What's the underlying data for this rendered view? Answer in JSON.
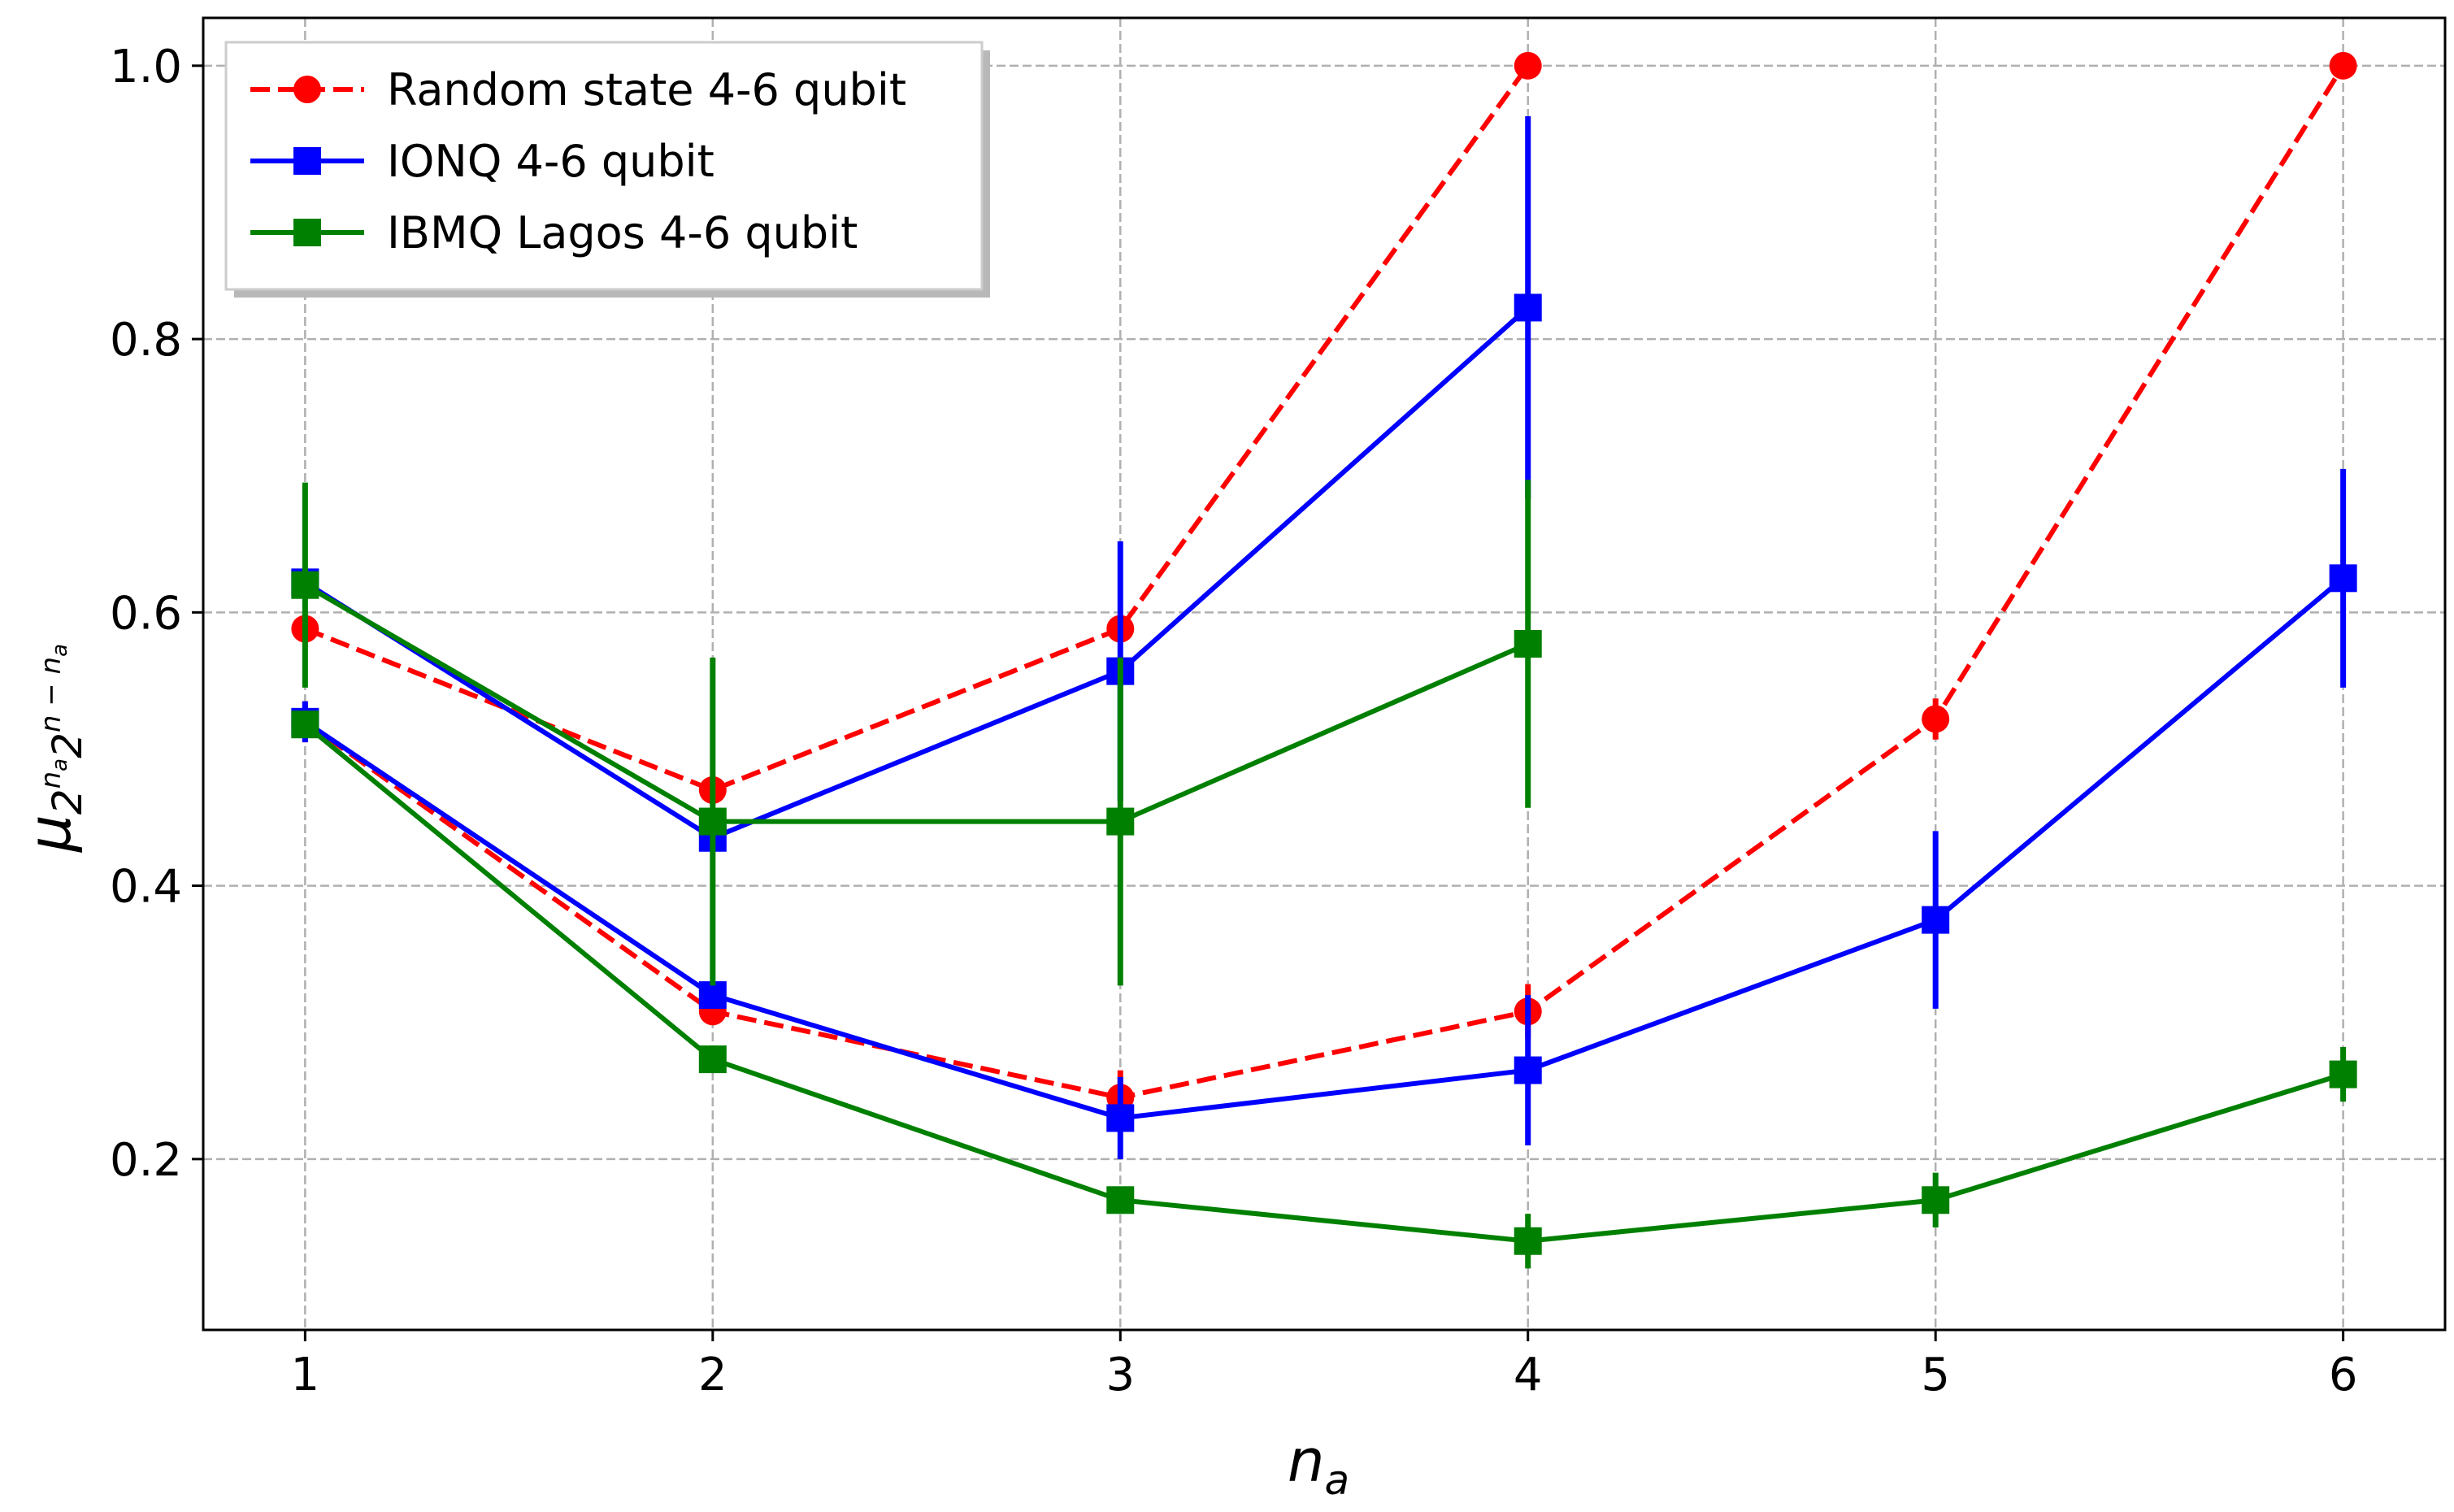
{
  "chart_data": {
    "type": "line",
    "xlabel_base": "n",
    "xlabel_sub": "a",
    "ylabel": {
      "mu": "μ",
      "sub_base1": "2",
      "sub_exp1": "n",
      "sub_exp1_sub": "a",
      "sub_base2": "2",
      "sub_exp2": "n − n",
      "sub_exp2_sub": "a"
    },
    "xlim": [
      0.75,
      6.25
    ],
    "ylim": [
      0.075,
      1.035
    ],
    "xticks": [
      1,
      2,
      3,
      4,
      5,
      6
    ],
    "yticks": [
      0.2,
      0.4,
      0.6,
      0.8,
      1.0
    ],
    "xtick_labels": [
      "1",
      "2",
      "3",
      "4",
      "5",
      "6"
    ],
    "ytick_labels": [
      "0.2",
      "0.4",
      "0.6",
      "0.8",
      "1.0"
    ],
    "grid": true,
    "legend_position": "top-left",
    "series": [
      {
        "name": "Random state 4-6 qubit",
        "color": "#ff0000",
        "dashed": true,
        "marker": "circle",
        "lines": [
          {
            "x": [
              1,
              2,
              3,
              4
            ],
            "y": [
              0.588,
              0.47,
              0.588,
              1.0
            ],
            "err": [
              0,
              0,
              0,
              0
            ]
          },
          {
            "x": [
              1,
              2,
              3,
              4,
              5,
              6
            ],
            "y": [
              0.52,
              0.308,
              0.245,
              0.308,
              0.522,
              1.0
            ],
            "err": [
              0.015,
              0.01,
              0.02,
              0.02,
              0.015,
              0
            ]
          }
        ]
      },
      {
        "name": "IONQ 4-6 qubit",
        "color": "#0000ff",
        "dashed": false,
        "marker": "square",
        "lines": [
          {
            "x": [
              1,
              2,
              3,
              4
            ],
            "y": [
              0.622,
              0.435,
              0.557,
              0.823
            ],
            "err": [
              0.01,
              0.01,
              0.095,
              0.14
            ]
          },
          {
            "x": [
              1,
              2,
              3,
              4,
              5,
              6
            ],
            "y": [
              0.52,
              0.32,
              0.23,
              0.265,
              0.375,
              0.625
            ],
            "err": [
              0.015,
              0.01,
              0.03,
              0.055,
              0.065,
              0.08
            ]
          }
        ]
      },
      {
        "name": "IBMQ Lagos 4-6 qubit",
        "color": "#008000",
        "dashed": false,
        "marker": "square",
        "lines": [
          {
            "x": [
              1,
              2,
              3,
              4
            ],
            "y": [
              0.62,
              0.447,
              0.447,
              0.577
            ],
            "err": [
              0.075,
              0.12,
              0.12,
              0.12
            ]
          },
          {
            "x": [
              1,
              2,
              3,
              4,
              5,
              6
            ],
            "y": [
              0.518,
              0.273,
              0.17,
              0.14,
              0.17,
              0.262
            ],
            "err": [
              0.01,
              0.01,
              0.01,
              0.02,
              0.02,
              0.02
            ]
          }
        ]
      }
    ]
  }
}
